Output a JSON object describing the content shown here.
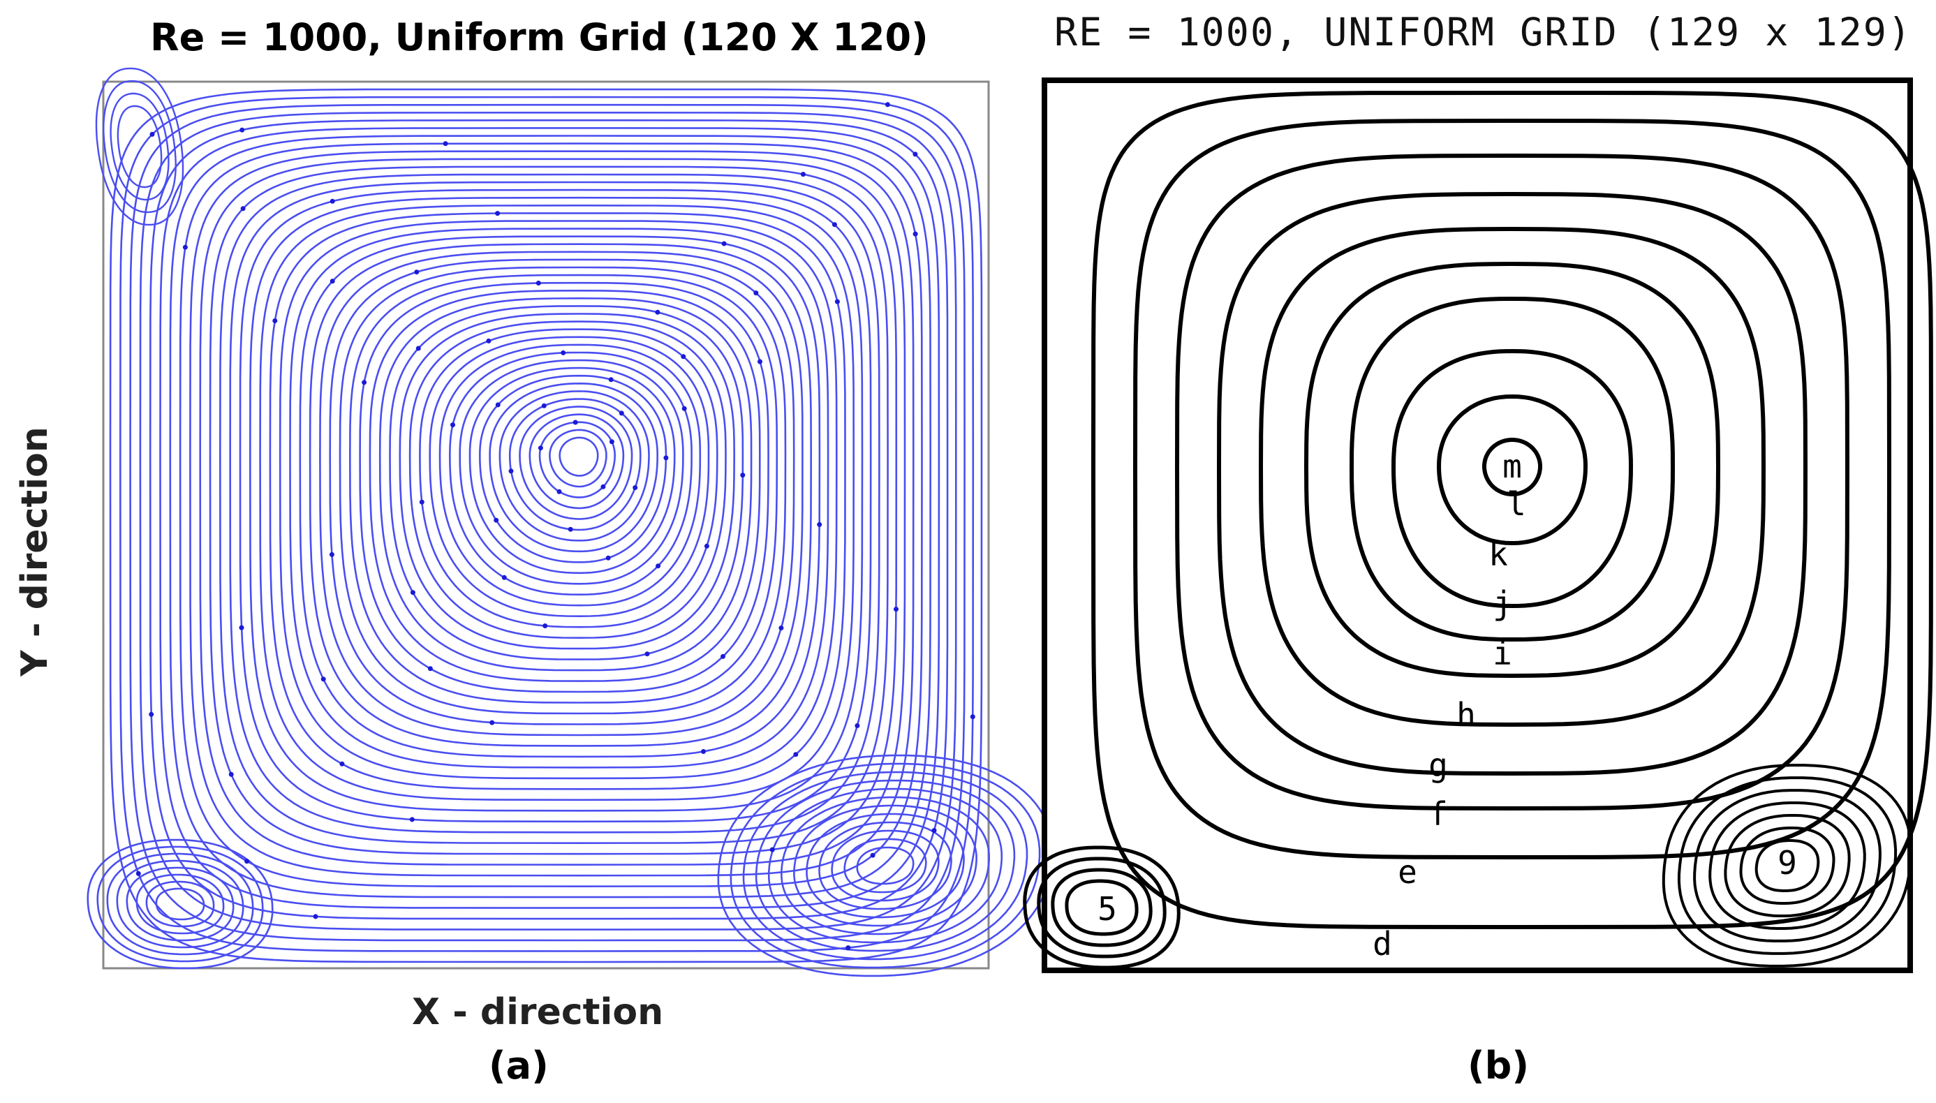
{
  "figure": {
    "panel_a": {
      "title": "Re = 1000, Uniform Grid (120 X 120)",
      "xlabel": "X - direction",
      "ylabel": "Y - direction",
      "caption": "(a)",
      "stroke_color": "#4a4ef0",
      "arrow_color": "#1a1ad8"
    },
    "panel_b": {
      "title": "RE = 1000, UNIFORM GRID (129 x 129)",
      "caption": "(b)",
      "contour_labels": [
        "m",
        "l",
        "k",
        "j",
        "i",
        "h",
        "g",
        "f",
        "e",
        "d",
        "5",
        "9"
      ],
      "stroke_color": "#000000"
    }
  }
}
